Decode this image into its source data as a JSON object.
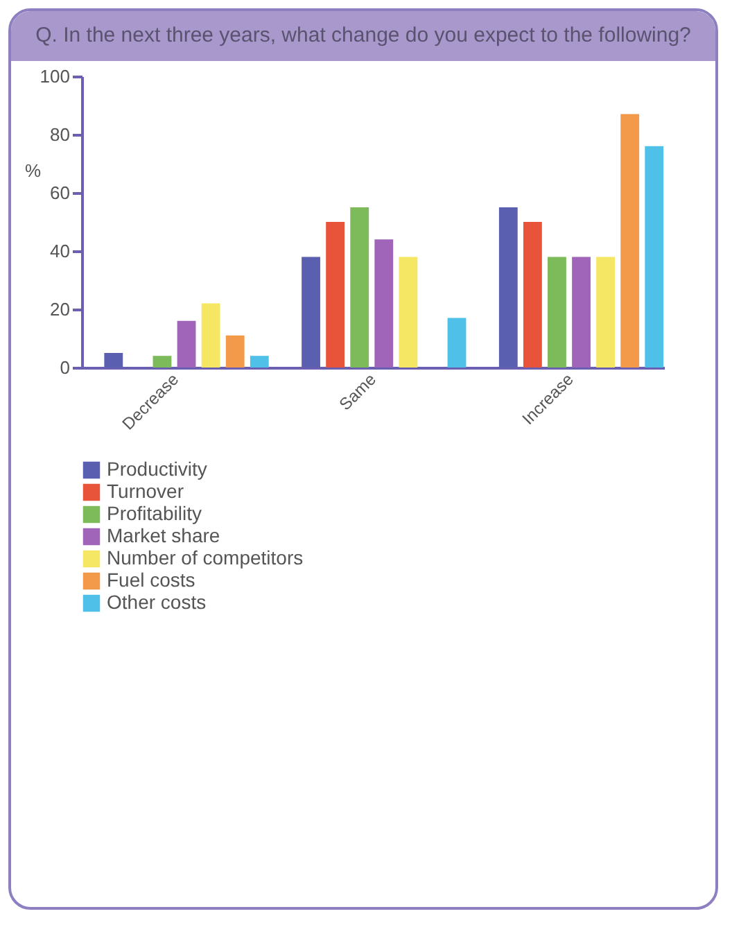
{
  "chart_data": {
    "type": "bar",
    "title": "Q.  In the next three years, what change do you expect to the following?",
    "ylabel": "%",
    "categories": [
      "Decrease",
      "Same",
      "Increase"
    ],
    "series": [
      {
        "name": "Productivity",
        "color": "#5a5fb0",
        "values": [
          5,
          38,
          55
        ]
      },
      {
        "name": "Turnover",
        "color": "#e8543a",
        "values": [
          0,
          50,
          50
        ]
      },
      {
        "name": "Profitability",
        "color": "#7dbb5a",
        "values": [
          4,
          55,
          38
        ]
      },
      {
        "name": "Market share",
        "color": "#a065b8",
        "values": [
          16,
          44,
          38
        ]
      },
      {
        "name": "Number of competitors",
        "color": "#f5e663",
        "values": [
          22,
          38,
          38
        ]
      },
      {
        "name": "Fuel costs",
        "color": "#f2994a",
        "values": [
          11,
          0,
          87
        ]
      },
      {
        "name": "Other costs",
        "color": "#4fc0e8",
        "values": [
          4,
          17,
          76
        ]
      }
    ],
    "ylim": [
      0,
      100
    ],
    "yticks": [
      0,
      20,
      40,
      60,
      80,
      100
    ],
    "grid": false,
    "legend": "bottom"
  }
}
